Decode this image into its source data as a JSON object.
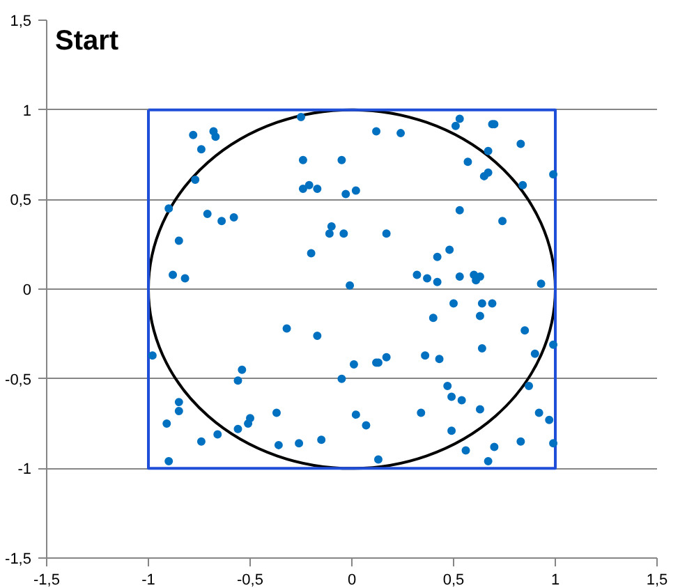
{
  "chart_data": {
    "type": "scatter",
    "title": "Start",
    "xlim": [
      -1.5,
      1.5
    ],
    "ylim": [
      -1.5,
      1.5
    ],
    "xticks": [
      {
        "value": -1.5,
        "label": "-1,5"
      },
      {
        "value": -1,
        "label": "-1"
      },
      {
        "value": -0.5,
        "label": "-0,5"
      },
      {
        "value": 0,
        "label": "0"
      },
      {
        "value": 0.5,
        "label": "0,5"
      },
      {
        "value": 1,
        "label": "1"
      },
      {
        "value": 1.5,
        "label": "1,5"
      }
    ],
    "yticks": [
      {
        "value": -1.5,
        "label": "-1,5"
      },
      {
        "value": -1,
        "label": "-1"
      },
      {
        "value": -0.5,
        "label": "-0,5"
      },
      {
        "value": 0,
        "label": "0"
      },
      {
        "value": 0.5,
        "label": "0,5"
      },
      {
        "value": 1,
        "label": "1"
      },
      {
        "value": 1.5,
        "label": "1,5"
      }
    ],
    "grid": "y",
    "marker": "circle",
    "series": [
      {
        "color": "#0070c0",
        "x": [
          -0.78,
          -0.68,
          -0.67,
          -0.74,
          -0.77,
          -0.9,
          -0.71,
          -0.64,
          -0.58,
          -0.85,
          -0.88,
          -0.82,
          -0.25,
          -0.24,
          -0.05,
          -0.24,
          -0.21,
          -0.17,
          -0.03,
          0.02,
          -0.1,
          -0.11,
          -0.04,
          -0.2,
          -0.01,
          0.53,
          0.51,
          0.69,
          0.7,
          0.12,
          0.24,
          0.83,
          0.67,
          0.57,
          0.67,
          0.65,
          0.99,
          0.84,
          0.53,
          0.74,
          0.17,
          0.48,
          0.42,
          0.32,
          0.37,
          0.42,
          0.53,
          0.6,
          0.63,
          0.61,
          0.93,
          -0.32,
          -0.17,
          -0.98,
          -0.54,
          -0.56,
          -0.05,
          0.01,
          -0.85,
          -0.85,
          -0.91,
          -0.5,
          -0.51,
          -0.37,
          -0.56,
          -0.66,
          -0.74,
          -0.36,
          -0.26,
          -0.15,
          -0.9,
          0.02,
          0.5,
          0.64,
          0.69,
          0.4,
          0.63,
          0.85,
          0.99,
          0.9,
          0.64,
          0.12,
          0.13,
          0.17,
          0.36,
          0.43,
          0.47,
          0.49,
          0.54,
          0.87,
          0.34,
          0.63,
          0.92,
          0.97,
          0.07,
          0.49,
          0.83,
          0.7,
          0.56,
          0.99,
          0.13,
          0.67
        ],
        "values": [
          0.86,
          0.88,
          0.85,
          0.78,
          0.61,
          0.45,
          0.42,
          0.38,
          0.4,
          0.27,
          0.08,
          0.06,
          0.96,
          0.72,
          0.72,
          0.56,
          0.58,
          0.56,
          0.53,
          0.55,
          0.35,
          0.31,
          0.31,
          0.2,
          0.02,
          0.95,
          0.91,
          0.92,
          0.92,
          0.88,
          0.87,
          0.81,
          0.77,
          0.71,
          0.65,
          0.63,
          0.64,
          0.58,
          0.44,
          0.38,
          0.31,
          0.22,
          0.18,
          0.08,
          0.06,
          0.04,
          0.07,
          0.08,
          0.07,
          0.05,
          0.03,
          -0.22,
          -0.26,
          -0.37,
          -0.45,
          -0.51,
          -0.5,
          -0.42,
          -0.63,
          -0.68,
          -0.75,
          -0.72,
          -0.75,
          -0.69,
          -0.78,
          -0.81,
          -0.85,
          -0.87,
          -0.86,
          -0.84,
          -0.96,
          -0.7,
          -0.08,
          -0.08,
          -0.08,
          -0.16,
          -0.15,
          -0.23,
          -0.31,
          -0.36,
          -0.33,
          -0.41,
          -0.41,
          -0.38,
          -0.37,
          -0.39,
          -0.54,
          -0.6,
          -0.62,
          -0.54,
          -0.69,
          -0.67,
          -0.69,
          -0.73,
          -0.76,
          -0.79,
          -0.85,
          -0.88,
          -0.9,
          -0.86,
          -0.95,
          -0.96
        ]
      }
    ]
  }
}
